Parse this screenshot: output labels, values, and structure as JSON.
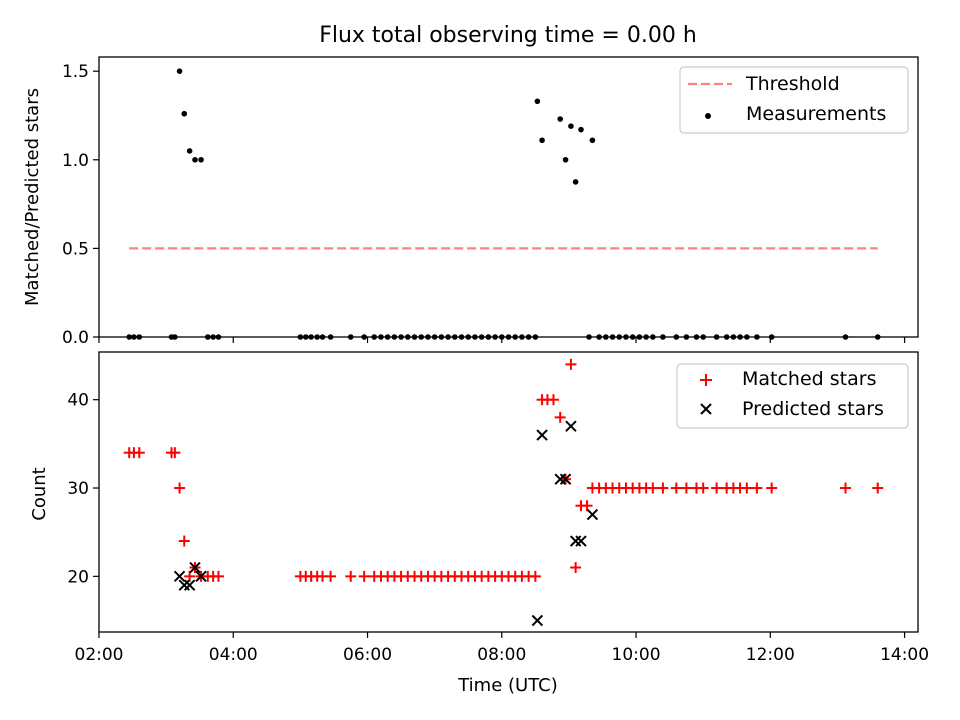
{
  "chart_data": [
    {
      "type": "scatter",
      "title": "Flux total observing time = 0.00 h",
      "ylabel": "Matched/Predicted stars",
      "xlabel": "",
      "x_unit": "hours UTC",
      "xlim": [
        2.0,
        14.2
      ],
      "ylim": [
        0,
        1.58
      ],
      "y_ticks": [
        0.0,
        0.5,
        1.0,
        1.5
      ],
      "y_tick_labels": [
        "0.0",
        "0.5",
        "1.0",
        "1.5"
      ],
      "x_ticks": [
        2,
        4,
        6,
        8,
        10,
        12,
        14
      ],
      "legend_position": "top-right",
      "series": [
        {
          "name": "Threshold",
          "kind": "dashed-line",
          "color": "#ff8080",
          "x": [
            2.45,
            13.6
          ],
          "y": [
            0.5,
            0.5
          ]
        },
        {
          "name": "Measurements",
          "kind": "dot",
          "color": "#000000",
          "points": [
            [
              2.45,
              0
            ],
            [
              2.52,
              0
            ],
            [
              2.6,
              0
            ],
            [
              3.08,
              0
            ],
            [
              3.13,
              0
            ],
            [
              3.62,
              0
            ],
            [
              3.7,
              0
            ],
            [
              3.78,
              0
            ],
            [
              5.0,
              0
            ],
            [
              5.08,
              0
            ],
            [
              5.16,
              0
            ],
            [
              5.25,
              0
            ],
            [
              5.33,
              0
            ],
            [
              5.45,
              0
            ],
            [
              5.75,
              0
            ],
            [
              5.95,
              0
            ],
            [
              6.1,
              0
            ],
            [
              6.2,
              0
            ],
            [
              6.3,
              0
            ],
            [
              6.4,
              0
            ],
            [
              6.5,
              0
            ],
            [
              6.6,
              0
            ],
            [
              6.7,
              0
            ],
            [
              6.8,
              0
            ],
            [
              6.9,
              0
            ],
            [
              7.0,
              0
            ],
            [
              7.1,
              0
            ],
            [
              7.2,
              0
            ],
            [
              7.3,
              0
            ],
            [
              7.4,
              0
            ],
            [
              7.5,
              0
            ],
            [
              7.6,
              0
            ],
            [
              7.7,
              0
            ],
            [
              7.8,
              0
            ],
            [
              7.9,
              0
            ],
            [
              8.0,
              0
            ],
            [
              8.1,
              0
            ],
            [
              8.2,
              0
            ],
            [
              8.3,
              0
            ],
            [
              8.4,
              0
            ],
            [
              8.5,
              0
            ],
            [
              9.3,
              0
            ],
            [
              9.45,
              0
            ],
            [
              9.55,
              0
            ],
            [
              9.65,
              0
            ],
            [
              9.75,
              0
            ],
            [
              9.85,
              0
            ],
            [
              9.95,
              0
            ],
            [
              10.05,
              0
            ],
            [
              10.15,
              0
            ],
            [
              10.25,
              0
            ],
            [
              10.4,
              0
            ],
            [
              10.6,
              0
            ],
            [
              10.75,
              0
            ],
            [
              10.9,
              0
            ],
            [
              11.0,
              0
            ],
            [
              11.2,
              0
            ],
            [
              11.35,
              0
            ],
            [
              11.45,
              0
            ],
            [
              11.55,
              0
            ],
            [
              11.65,
              0
            ],
            [
              11.8,
              0
            ],
            [
              12.02,
              0
            ],
            [
              13.12,
              0
            ],
            [
              13.6,
              0
            ],
            [
              3.2,
              1.5
            ],
            [
              3.27,
              1.26
            ],
            [
              3.35,
              1.05
            ],
            [
              3.43,
              1.0
            ],
            [
              3.52,
              1.0
            ],
            [
              8.53,
              1.33
            ],
            [
              8.6,
              1.11
            ],
            [
              8.87,
              1.23
            ],
            [
              8.95,
              1.0
            ],
            [
              9.03,
              1.19
            ],
            [
              9.1,
              0.875
            ],
            [
              9.18,
              1.17
            ],
            [
              9.35,
              1.11
            ]
          ]
        }
      ]
    },
    {
      "type": "scatter",
      "title": "",
      "ylabel": "Count",
      "xlabel": "Time (UTC)",
      "x_unit": "hours UTC",
      "xlim": [
        2.0,
        14.2
      ],
      "ylim": [
        13.7,
        45.4
      ],
      "y_ticks": [
        20,
        30,
        40
      ],
      "y_tick_labels": [
        "20",
        "30",
        "40"
      ],
      "x_ticks": [
        2,
        4,
        6,
        8,
        10,
        12,
        14
      ],
      "x_tick_labels": [
        "02:00",
        "04:00",
        "06:00",
        "08:00",
        "10:00",
        "12:00",
        "14:00"
      ],
      "legend_position": "top-right",
      "series": [
        {
          "name": "Matched stars",
          "kind": "plus",
          "color": "#ff0000",
          "points": [
            [
              2.45,
              34
            ],
            [
              2.52,
              34
            ],
            [
              2.6,
              34
            ],
            [
              3.08,
              34
            ],
            [
              3.13,
              34
            ],
            [
              3.2,
              30
            ],
            [
              3.27,
              24
            ],
            [
              3.35,
              20
            ],
            [
              3.43,
              21
            ],
            [
              3.52,
              20
            ],
            [
              3.62,
              20
            ],
            [
              3.7,
              20
            ],
            [
              3.78,
              20
            ],
            [
              5.0,
              20
            ],
            [
              5.08,
              20
            ],
            [
              5.16,
              20
            ],
            [
              5.25,
              20
            ],
            [
              5.33,
              20
            ],
            [
              5.45,
              20
            ],
            [
              5.75,
              20
            ],
            [
              5.95,
              20
            ],
            [
              6.1,
              20
            ],
            [
              6.2,
              20
            ],
            [
              6.3,
              20
            ],
            [
              6.4,
              20
            ],
            [
              6.5,
              20
            ],
            [
              6.6,
              20
            ],
            [
              6.7,
              20
            ],
            [
              6.8,
              20
            ],
            [
              6.9,
              20
            ],
            [
              7.0,
              20
            ],
            [
              7.1,
              20
            ],
            [
              7.2,
              20
            ],
            [
              7.3,
              20
            ],
            [
              7.4,
              20
            ],
            [
              7.5,
              20
            ],
            [
              7.6,
              20
            ],
            [
              7.7,
              20
            ],
            [
              7.8,
              20
            ],
            [
              7.9,
              20
            ],
            [
              8.0,
              20
            ],
            [
              8.1,
              20
            ],
            [
              8.2,
              20
            ],
            [
              8.3,
              20
            ],
            [
              8.4,
              20
            ],
            [
              8.5,
              20
            ],
            [
              8.6,
              40
            ],
            [
              8.68,
              40
            ],
            [
              8.77,
              40
            ],
            [
              8.87,
              38
            ],
            [
              8.95,
              31
            ],
            [
              9.03,
              44
            ],
            [
              9.1,
              21
            ],
            [
              9.18,
              28
            ],
            [
              9.27,
              28
            ],
            [
              9.35,
              30
            ],
            [
              9.45,
              30
            ],
            [
              9.55,
              30
            ],
            [
              9.65,
              30
            ],
            [
              9.75,
              30
            ],
            [
              9.85,
              30
            ],
            [
              9.95,
              30
            ],
            [
              10.05,
              30
            ],
            [
              10.15,
              30
            ],
            [
              10.25,
              30
            ],
            [
              10.4,
              30
            ],
            [
              10.6,
              30
            ],
            [
              10.75,
              30
            ],
            [
              10.9,
              30
            ],
            [
              11.0,
              30
            ],
            [
              11.2,
              30
            ],
            [
              11.35,
              30
            ],
            [
              11.45,
              30
            ],
            [
              11.55,
              30
            ],
            [
              11.65,
              30
            ],
            [
              11.8,
              30
            ],
            [
              12.02,
              30
            ],
            [
              13.12,
              30
            ],
            [
              13.6,
              30
            ]
          ]
        },
        {
          "name": "Predicted stars",
          "kind": "x",
          "color": "#000000",
          "points": [
            [
              3.2,
              20
            ],
            [
              3.27,
              19
            ],
            [
              3.35,
              19
            ],
            [
              3.43,
              21
            ],
            [
              3.52,
              20
            ],
            [
              8.53,
              15
            ],
            [
              8.6,
              36
            ],
            [
              8.87,
              31
            ],
            [
              8.95,
              31
            ],
            [
              9.03,
              37
            ],
            [
              9.1,
              24
            ],
            [
              9.18,
              24
            ],
            [
              9.35,
              27
            ]
          ]
        }
      ]
    }
  ]
}
